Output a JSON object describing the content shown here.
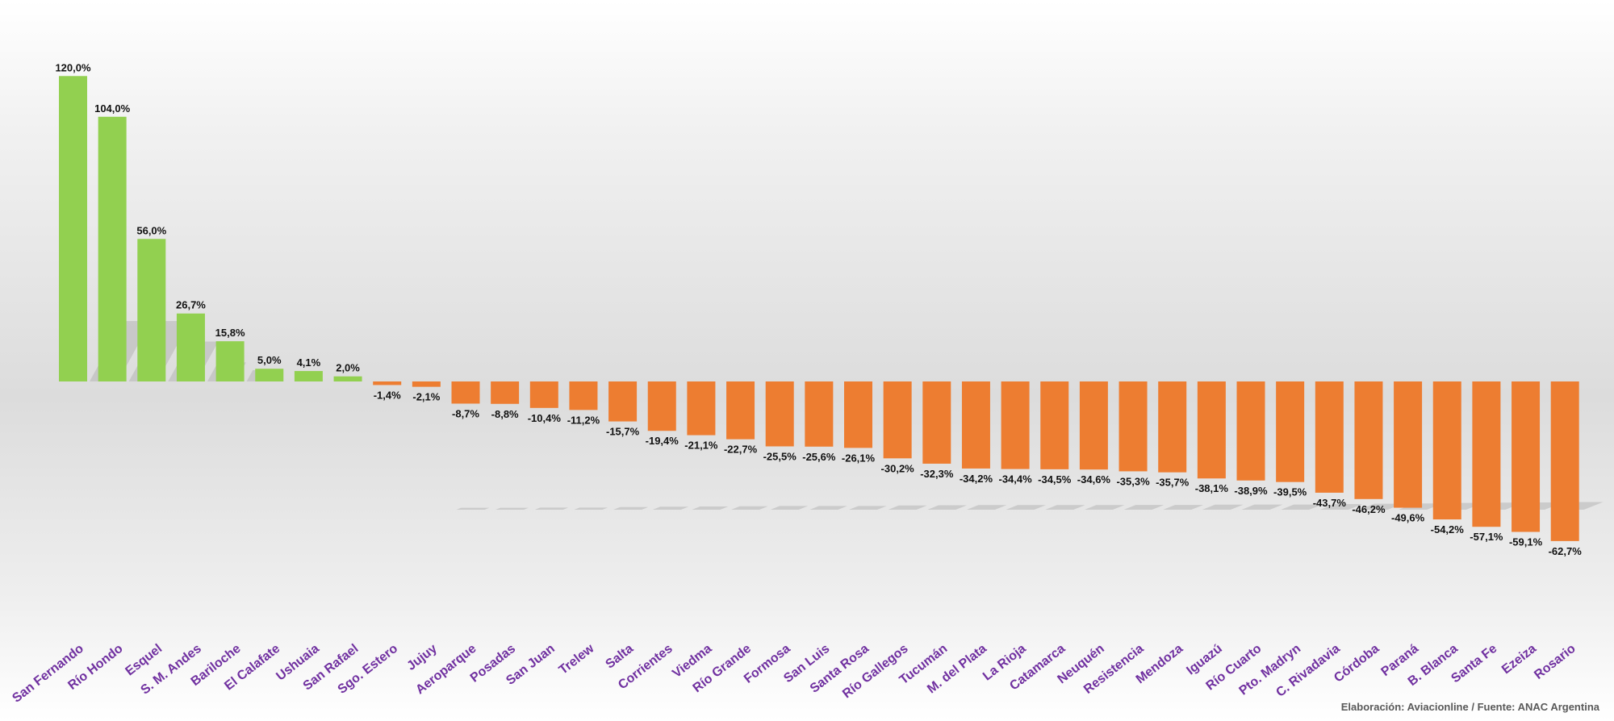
{
  "colors": {
    "positive": "#92d050",
    "negative": "#ed7d31",
    "category_text": "#7030a0",
    "value_text": "#111111",
    "shadow": "#b5b5b5"
  },
  "source_note": "Elaboración: Aviacionline  / Fuente: ANAC Argentina",
  "chart_data": {
    "type": "bar",
    "categories": [
      "San Fernando",
      "Río Hondo",
      "Esquel",
      "S. M. Andes",
      "Bariloche",
      "El Calafate",
      "Ushuaia",
      "San Rafael",
      "Sgo. Estero",
      "Jujuy",
      "Aeroparque",
      "Posadas",
      "San Juan",
      "Trelew",
      "Salta",
      "Corrientes",
      "Viedma",
      "Río Grande",
      "Formosa",
      "San Luis",
      "Santa Rosa",
      "Río Gallegos",
      "Tucumán",
      "M. del Plata",
      "La Rioja",
      "Catamarca",
      "Neuquén",
      "Resistencia",
      "Mendoza",
      "Iguazú",
      "Río Cuarto",
      "Pto. Madryn",
      "C. Rivadavia",
      "Córdoba",
      "Paraná",
      "B. Blanca",
      "Santa Fe",
      "Ezeiza",
      "Rosario"
    ],
    "values": [
      120.0,
      104.0,
      56.0,
      26.7,
      15.8,
      5.0,
      4.1,
      2.0,
      -1.4,
      -2.1,
      -8.7,
      -8.8,
      -10.4,
      -11.2,
      -15.7,
      -19.4,
      -21.1,
      -22.7,
      -25.5,
      -25.6,
      -26.1,
      -30.2,
      -32.3,
      -34.2,
      -34.4,
      -34.5,
      -34.6,
      -35.3,
      -35.7,
      -38.1,
      -38.9,
      -39.5,
      -43.7,
      -46.2,
      -49.6,
      -54.2,
      -57.1,
      -59.1,
      -62.7
    ],
    "value_labels": [
      "120,0%",
      "104,0%",
      "56,0%",
      "26,7%",
      "15,8%",
      "5,0%",
      "4,1%",
      "2,0%",
      "-1,4%",
      "-2,1%",
      "-8,7%",
      "-8,8%",
      "-10,4%",
      "-11,2%",
      "-15,7%",
      "-19,4%",
      "-21,1%",
      "-22,7%",
      "-25,5%",
      "-25,6%",
      "-26,1%",
      "-30,2%",
      "-32,3%",
      "-34,2%",
      "-34,4%",
      "-34,5%",
      "-34,6%",
      "-35,3%",
      "-35,7%",
      "-38,1%",
      "-38,9%",
      "-39,5%",
      "-43,7%",
      "-46,2%",
      "-49,6%",
      "-54,2%",
      "-57,1%",
      "-59,1%",
      "-62,7%"
    ],
    "ylim": [
      -62.7,
      120.0
    ],
    "grid": false,
    "legend": "none",
    "xlabel": "",
    "ylabel": ""
  }
}
